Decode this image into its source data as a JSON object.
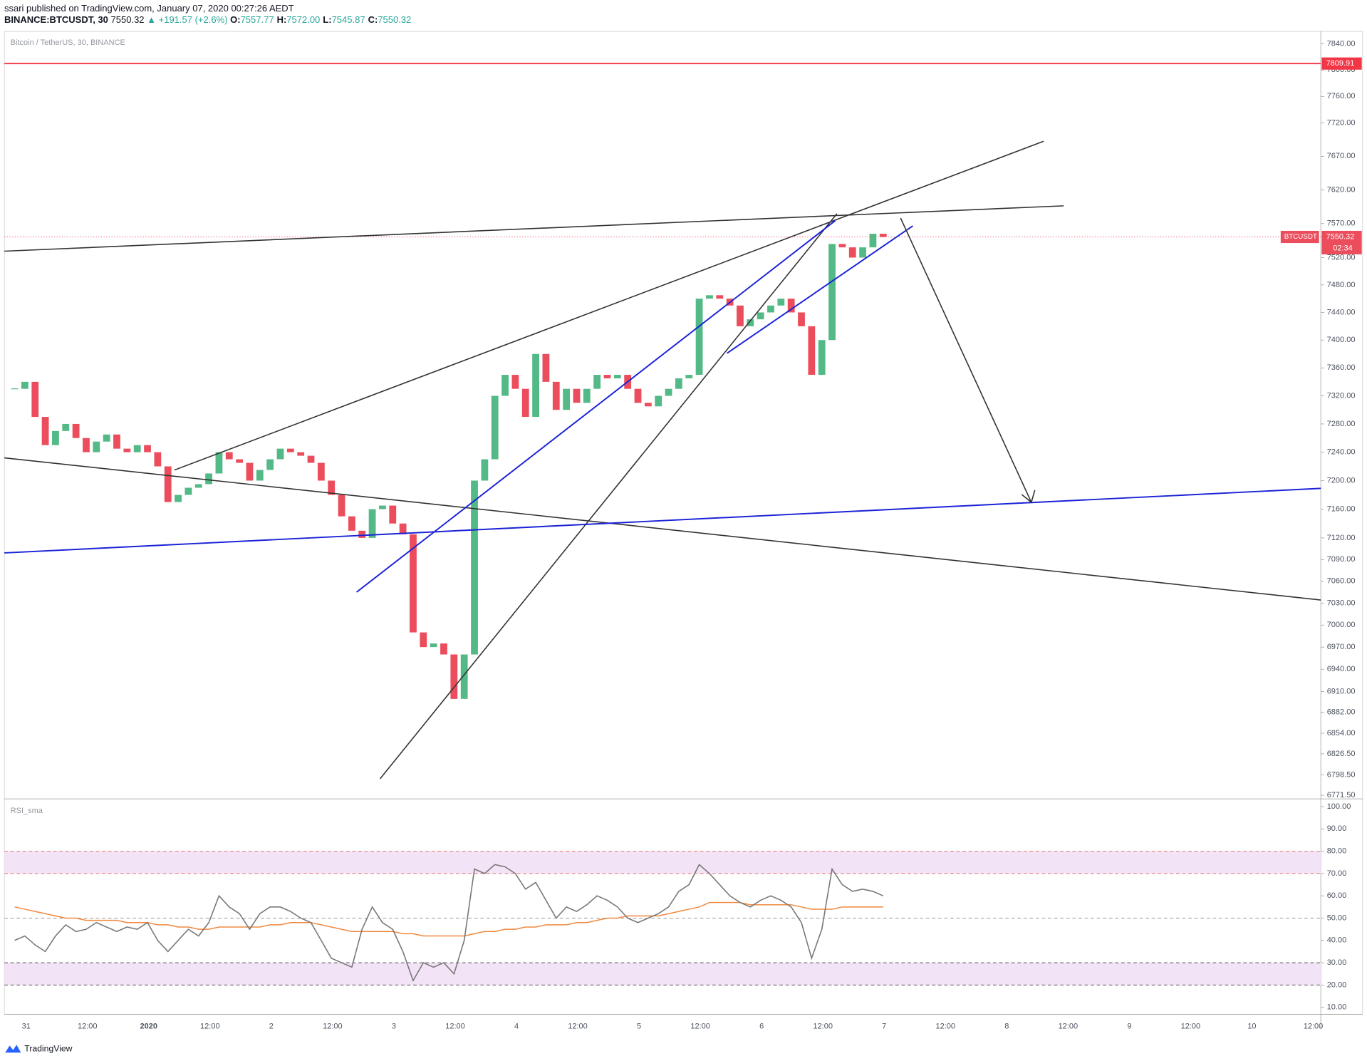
{
  "header": {
    "publisher": "ssari published on TradingView.com, January 07, 2020 00:27:26 AEDT",
    "symbol": "BINANCE:BTCUSDT, 30",
    "price": "7550.32",
    "change": "▲ +191.57 (+2.6%)",
    "ohlc": [
      {
        "label": "O:",
        "value": "7557.77"
      },
      {
        "label": "H:",
        "value": "7572.00"
      },
      {
        "label": "L:",
        "value": "7545.87"
      },
      {
        "label": "C:",
        "value": "7550.32"
      }
    ]
  },
  "chart_data": [
    {
      "type": "candlestick",
      "title": "Bitcoin / TetherUS, 30, BINANCE",
      "log_scale": true,
      "ylim": [
        6768,
        7859
      ],
      "yticks": [
        {
          "value": 6771.5,
          "label": "6771.50"
        },
        {
          "value": 6798.5,
          "label": "6798.50"
        },
        {
          "value": 6826.5,
          "label": "6826.50"
        },
        {
          "value": 6854,
          "label": "6854.00"
        },
        {
          "value": 6882,
          "label": "6882.00"
        },
        {
          "value": 6910,
          "label": "6910.00"
        },
        {
          "value": 6940,
          "label": "6940.00"
        },
        {
          "value": 6970,
          "label": "6970.00"
        },
        {
          "value": 7000,
          "label": "7000.00"
        },
        {
          "value": 7030,
          "label": "7030.00"
        },
        {
          "value": 7060,
          "label": "7060.00"
        },
        {
          "value": 7090,
          "label": "7090.00"
        },
        {
          "value": 7120,
          "label": "7120.00"
        },
        {
          "value": 7160,
          "label": "7160.00"
        },
        {
          "value": 7200,
          "label": "7200.00"
        },
        {
          "value": 7240,
          "label": "7240.00"
        },
        {
          "value": 7280,
          "label": "7280.00"
        },
        {
          "value": 7320,
          "label": "7320.00"
        },
        {
          "value": 7360,
          "label": "7360.00"
        },
        {
          "value": 7400,
          "label": "7400.00"
        },
        {
          "value": 7440,
          "label": "7440.00"
        },
        {
          "value": 7480,
          "label": "7480.00"
        },
        {
          "value": 7520,
          "label": "7520.00"
        },
        {
          "value": 7570,
          "label": "7570.00"
        },
        {
          "value": 7620,
          "label": "7620.00"
        },
        {
          "value": 7670,
          "label": "7670.00"
        },
        {
          "value": 7720,
          "label": "7720.00"
        },
        {
          "value": 7760,
          "label": "7760.00"
        },
        {
          "value": 7800,
          "label": "7800.00"
        },
        {
          "value": 7840,
          "label": "7840.00"
        }
      ],
      "up_color": "#53b987",
      "down_color": "#eb4d5c",
      "close": [
        7330,
        7340,
        7290,
        7250,
        7270,
        7280,
        7260,
        7240,
        7255,
        7265,
        7245,
        7240,
        7250,
        7240,
        7220,
        7170,
        7180,
        7190,
        7195,
        7210,
        7240,
        7230,
        7225,
        7200,
        7215,
        7230,
        7245,
        7240,
        7235,
        7225,
        7200,
        7180,
        7150,
        7130,
        7120,
        7160,
        7165,
        7140,
        7125,
        6990,
        6970,
        6975,
        6960,
        6900,
        6960,
        7200,
        7230,
        7320,
        7350,
        7330,
        7290,
        7380,
        7340,
        7300,
        7330,
        7310,
        7330,
        7350,
        7345,
        7350,
        7330,
        7310,
        7305,
        7320,
        7330,
        7345,
        7350,
        7460,
        7465,
        7460,
        7450,
        7420,
        7430,
        7440,
        7450,
        7460,
        7440,
        7420,
        7350,
        7400,
        7540,
        7535,
        7520,
        7535,
        7555,
        7550.32
      ],
      "alert_line": {
        "value": 7809.91,
        "color": "#f23645"
      },
      "last_price": 7550.32,
      "symbol_tag": "BTCUSDT",
      "countdown": "02:34"
    },
    {
      "type": "line",
      "title": "RSI_sma",
      "ylim": [
        6.9,
        103.1
      ],
      "yticks": [
        {
          "value": 10,
          "label": "10.00"
        },
        {
          "value": 20,
          "label": "20.00"
        },
        {
          "value": 30,
          "label": "30.00"
        },
        {
          "value": 40,
          "label": "40.00"
        },
        {
          "value": 50,
          "label": "50.00"
        },
        {
          "value": 60,
          "label": "60.00"
        },
        {
          "value": 70,
          "label": "70.00"
        },
        {
          "value": 80,
          "label": "80.00"
        },
        {
          "value": 90,
          "label": "90.00"
        },
        {
          "value": 100,
          "label": "100.00"
        }
      ],
      "bands": [
        [
          70,
          80
        ],
        [
          20,
          30
        ]
      ],
      "levels": [
        80,
        70,
        50,
        30,
        20
      ],
      "series": [
        {
          "color": "#787878",
          "values": [
            40,
            42,
            38,
            35,
            42,
            47,
            44,
            45,
            48,
            46,
            44,
            46,
            45,
            48,
            40,
            35,
            40,
            45,
            42,
            48,
            60,
            55,
            52,
            45,
            52,
            55,
            55,
            53,
            50,
            48,
            40,
            32,
            30,
            28,
            45,
            55,
            48,
            45,
            35,
            22,
            30,
            28,
            30,
            25,
            40,
            72,
            70,
            74,
            73,
            70,
            63,
            66,
            58,
            50,
            55,
            53,
            56,
            60,
            58,
            55,
            50,
            48,
            50,
            52,
            55,
            62,
            65,
            74,
            70,
            65,
            60,
            57,
            55,
            58,
            60,
            58,
            55,
            48,
            32,
            45,
            72,
            65,
            62,
            63,
            62,
            60
          ]
        },
        {
          "color": "#f0883e",
          "values": [
            55,
            54,
            53,
            52,
            51,
            50,
            50,
            49,
            49,
            49,
            49,
            48,
            48,
            48,
            47,
            47,
            46,
            46,
            45,
            45,
            46,
            46,
            46,
            46,
            46,
            47,
            47,
            48,
            48,
            48,
            47,
            46,
            45,
            44,
            44,
            44,
            44,
            44,
            43,
            43,
            42,
            42,
            42,
            42,
            42,
            43,
            44,
            44,
            45,
            45,
            46,
            46,
            47,
            47,
            47,
            48,
            48,
            49,
            50,
            50,
            51,
            51,
            51,
            51,
            52,
            53,
            54,
            55,
            57,
            57,
            57,
            57,
            56,
            56,
            56,
            56,
            56,
            55,
            54,
            54,
            54,
            55,
            55,
            55,
            55,
            55
          ]
        }
      ]
    }
  ],
  "time_axis": {
    "labels": [
      "31",
      "12:00",
      "2020",
      "12:00",
      "2",
      "12:00",
      "3",
      "12:00",
      "4",
      "12:00",
      "5",
      "12:00",
      "6",
      "12:00",
      "7",
      "12:00",
      "8",
      "12:00",
      "9",
      "12:00",
      "10",
      "12:00"
    ]
  },
  "footer": {
    "brand": "TradingView"
  }
}
